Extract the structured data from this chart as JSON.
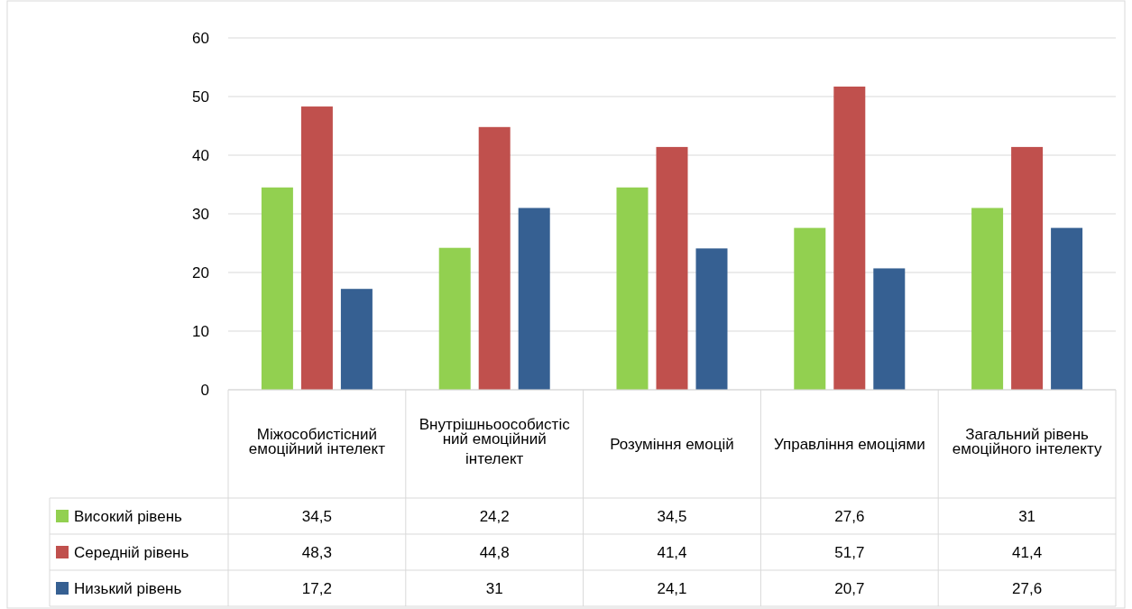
{
  "chart_data": {
    "type": "bar",
    "categories": [
      "Міжособистісний емоційний інтелект",
      "Внутрішньоособистісний емоційний інтелект",
      "Розуміння емоцій",
      "Управління емоціями",
      "Загальний рівень емоційного інтелекту"
    ],
    "series": [
      {
        "name": "Високий рівень",
        "color": "#92d050",
        "values": [
          34.5,
          24.2,
          34.5,
          27.6,
          31
        ],
        "value_labels": [
          "34,5",
          "24,2",
          "34,5",
          "27,6",
          "31"
        ]
      },
      {
        "name": "Середній рівень",
        "color": "#c0504d",
        "values": [
          48.3,
          44.8,
          41.4,
          51.7,
          41.4
        ],
        "value_labels": [
          "48,3",
          "44,8",
          "41,4",
          "51,7",
          "41,4"
        ]
      },
      {
        "name": "Низький рівень",
        "color": "#366092",
        "values": [
          17.2,
          31,
          24.1,
          20.7,
          27.6
        ],
        "value_labels": [
          "17,2",
          "31",
          "24,1",
          "20,7",
          "27,6"
        ]
      }
    ],
    "ylim": [
      0,
      60
    ],
    "yticks": [
      0,
      10,
      20,
      30,
      40,
      50,
      60
    ],
    "grid": "y",
    "legend": "bottom left"
  }
}
